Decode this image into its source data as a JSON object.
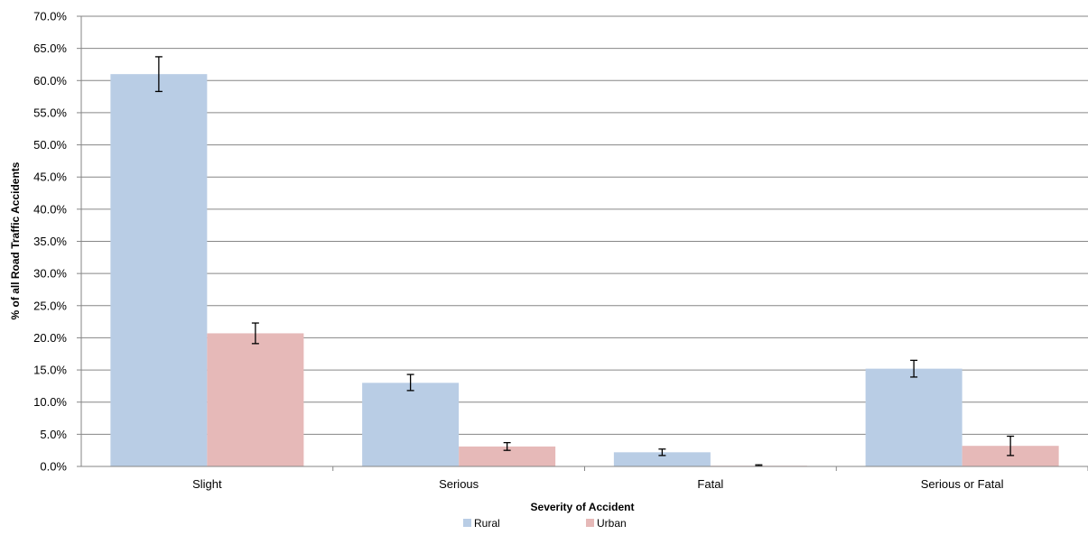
{
  "chart_data": {
    "type": "bar",
    "title": "",
    "xlabel": "Severity of Accident",
    "ylabel": "% of all Road Traffic Accidents",
    "categories": [
      "Slight",
      "Serious",
      "Fatal",
      "Serious or Fatal"
    ],
    "series": [
      {
        "name": "Rural",
        "color": "#b9cde5",
        "values": [
          61.0,
          13.0,
          2.2,
          15.2
        ],
        "error_low": [
          58.3,
          11.8,
          1.7,
          13.9
        ],
        "error_high": [
          63.7,
          14.3,
          2.7,
          16.5
        ]
      },
      {
        "name": "Urban",
        "color": "#e6b9b8",
        "values": [
          20.7,
          3.1,
          0.1,
          3.2
        ],
        "error_low": [
          19.1,
          2.5,
          0.05,
          1.7
        ],
        "error_high": [
          22.3,
          3.7,
          0.25,
          4.7
        ]
      }
    ],
    "ylim": [
      0,
      70
    ],
    "ytick_step": 5,
    "ytick_labels": [
      "0.0%",
      "5.0%",
      "10.0%",
      "15.0%",
      "20.0%",
      "25.0%",
      "30.0%",
      "35.0%",
      "40.0%",
      "45.0%",
      "50.0%",
      "55.0%",
      "60.0%",
      "65.0%",
      "70.0%"
    ],
    "grid": true,
    "legend_position": "bottom",
    "gridline_color": "#868686",
    "axis_color": "#868686"
  }
}
